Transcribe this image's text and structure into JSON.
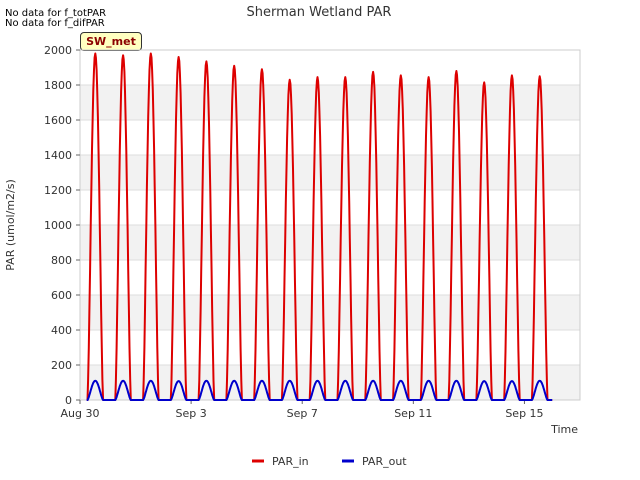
{
  "notes": [
    "No data for f_totPAR",
    "No data for f_difPAR"
  ],
  "badge": "SW_met",
  "chart_data": {
    "type": "line",
    "title": "Sherman Wetland PAR",
    "xlabel": "Time",
    "ylabel": "PAR (umol/m2/s)",
    "ylim": [
      0,
      2000
    ],
    "yticks": [
      0,
      200,
      400,
      600,
      800,
      1000,
      1200,
      1400,
      1600,
      1800,
      2000
    ],
    "xticks": [
      "Aug 30",
      "Sep 3",
      "Sep 7",
      "Sep 11",
      "Sep 15"
    ],
    "x_range_days": [
      0,
      18
    ],
    "grid": true,
    "legend_placement": "bottom-center",
    "series": [
      {
        "name": "PAR_in",
        "color": "#dd0000",
        "daily_peaks": [
          1980,
          1970,
          1980,
          1960,
          1935,
          1910,
          1890,
          1830,
          1845,
          1845,
          1875,
          1855,
          1845,
          1880,
          1815,
          1855,
          1850
        ]
      },
      {
        "name": "PAR_out",
        "color": "#0000cc",
        "daily_peaks": [
          110,
          110,
          110,
          108,
          110,
          110,
          110,
          110,
          110,
          110,
          110,
          110,
          110,
          110,
          108,
          108,
          110
        ]
      }
    ]
  }
}
